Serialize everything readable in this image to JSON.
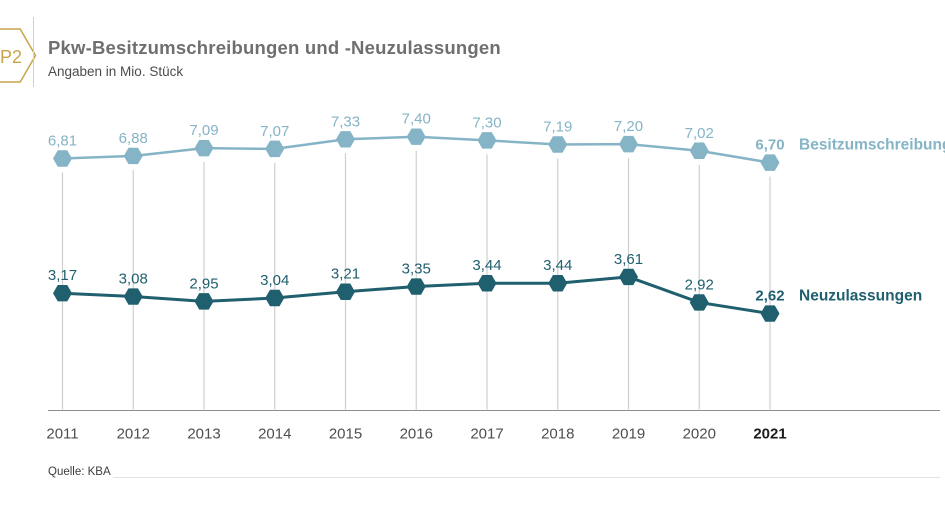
{
  "header": {
    "badge_label": "P2",
    "title": "Pkw-Besitzumschreibungen und -Neuzulassungen",
    "subtitle": "Angaben in Mio. Stück"
  },
  "footer": {
    "source_label": "Quelle: KBA"
  },
  "colors": {
    "accent_gold": "#c7a44b",
    "series_besitzumschreibungen": "#85b4c6",
    "series_neuzulassungen": "#1f5f6e",
    "gridline": "#cfcfcf",
    "axis_line": "#8d8d8d",
    "title_gray": "#6f6f6f"
  },
  "chart_data": {
    "type": "line",
    "title": "Pkw-Besitzumschreibungen und -Neuzulassungen",
    "subtitle": "Angaben in Mio. Stück",
    "unit": "Mio. Stück",
    "categories": [
      "2011",
      "2012",
      "2013",
      "2014",
      "2015",
      "2016",
      "2017",
      "2018",
      "2019",
      "2020",
      "2021"
    ],
    "highlighted_category": "2021",
    "series": [
      {
        "name": "Besitzumschreibungen",
        "color": "#85b4c6",
        "values": [
          6.81,
          6.88,
          7.09,
          7.07,
          7.33,
          7.4,
          7.3,
          7.19,
          7.2,
          7.02,
          6.7
        ]
      },
      {
        "name": "Neuzulassungen",
        "color": "#1f5f6e",
        "values": [
          3.17,
          3.08,
          2.95,
          3.04,
          3.21,
          3.35,
          3.44,
          3.44,
          3.61,
          2.92,
          2.62
        ]
      }
    ],
    "ylim": [
      0,
      8
    ],
    "grid": "vertical-per-category",
    "legend_position": "right-of-last-point",
    "value_labels": "above-each-point, decimal comma, 2 digits",
    "source": "Quelle: KBA"
  }
}
